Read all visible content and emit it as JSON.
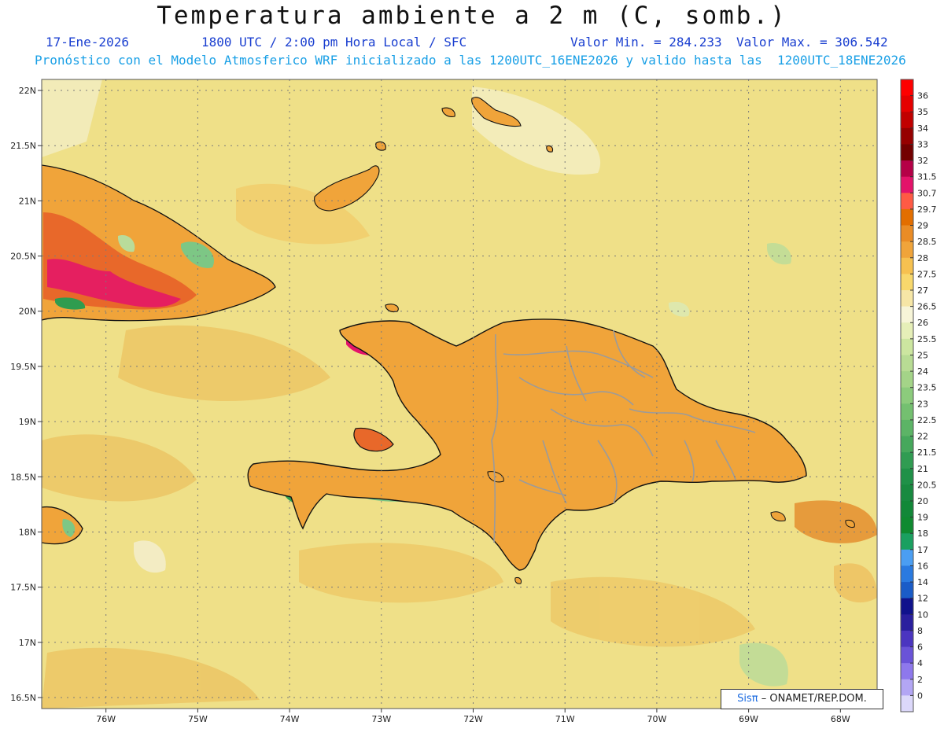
{
  "header": {
    "title": "Temperatura ambiente a 2 m (C, somb.)",
    "date": "17-Ene-2026",
    "time": "1800 UTC / 2:00 pm Hora Local / SFC",
    "valor_min": "Valor Min. = 284.233",
    "valor_max": "Valor Max. = 306.542",
    "model_line": "Pronóstico con el Modelo Atmosferico WRF inicializado a las 1200UTC_16ENE2026 y valido hasta las  1200UTC_18ENE2026"
  },
  "map": {
    "lon_range": [
      -76.7,
      -67.6
    ],
    "lat_range": [
      16.4,
      22.1
    ],
    "lon_ticks": [
      "76W",
      "75W",
      "74W",
      "73W",
      "72W",
      "71W",
      "70W",
      "69W",
      "68W"
    ],
    "lat_ticks": [
      "22N",
      "21.5N",
      "21N",
      "20.5N",
      "20N",
      "19.5N",
      "19N",
      "18.5N",
      "18N",
      "17.5N",
      "17N",
      "16.5N"
    ],
    "ocean_color": "#efe088",
    "land_colors": [
      "#f3b460",
      "#e8682a",
      "#e31a6a",
      "#a8326e",
      "#2f9c4f",
      "#7dc785",
      "#2b7ad6"
    ]
  },
  "colorbar": {
    "labels": [
      "36",
      "35",
      "34",
      "33",
      "32",
      "31.5",
      "30.7",
      "29.7",
      "29",
      "28.5",
      "28",
      "27.5",
      "27",
      "26.5",
      "26",
      "25.5",
      "25",
      "24",
      "23.5",
      "23",
      "22.5",
      "22",
      "21.5",
      "21",
      "20.5",
      "20",
      "19",
      "18",
      "17",
      "16",
      "14",
      "12",
      "10",
      "8",
      "6",
      "4",
      "2",
      "0"
    ],
    "colors": [
      "#fe0000",
      "#e50000",
      "#c10000",
      "#960000",
      "#730000",
      "#b50047",
      "#e4136a",
      "#ff5a44",
      "#e36e00",
      "#ea8c25",
      "#f0a43a",
      "#f6c150",
      "#f8d86c",
      "#f6e6a6",
      "#f7f5d8",
      "#e6efb8",
      "#cce6a0",
      "#b8dc94",
      "#a4d488",
      "#8ccb7c",
      "#74c070",
      "#5cb466",
      "#46a85c",
      "#309c52",
      "#1f9148",
      "#188a40",
      "#128838",
      "#0f8a30",
      "#1aa060",
      "#4b9ef2",
      "#2a7ae0",
      "#1a5cc8",
      "#10128c",
      "#2a1f9e",
      "#4b35c0",
      "#6a53d8",
      "#8e78ec",
      "#b3a6f4",
      "#dcd8fa"
    ]
  },
  "credit": {
    "sis": "Sisπ",
    "rest": "– ONAMET/REP.DOM."
  }
}
